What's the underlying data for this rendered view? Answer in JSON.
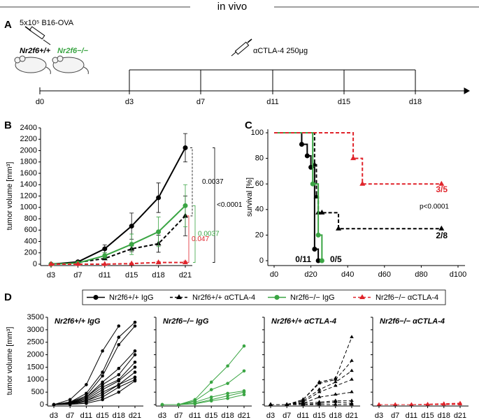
{
  "header": {
    "title": "in vivo"
  },
  "panel_labels": [
    "A",
    "B",
    "C",
    "D"
  ],
  "panel_a": {
    "cell_text": "5x10⁵ B16-OVA",
    "wt": "Nr2f6+/+",
    "ko": "Nr2f6−/−",
    "treatment": "αCTLA-4 250μg",
    "timeline": [
      "d0",
      "d3",
      "d7",
      "d11",
      "d15",
      "d18"
    ]
  },
  "chart_data": [
    {
      "type": "line",
      "y_label": "tumor volume [mm³]",
      "categories": [
        "d3",
        "d7",
        "d11",
        "d15",
        "d18",
        "d21"
      ],
      "ylim": [
        0,
        2400
      ],
      "yticks": [
        0,
        200,
        400,
        600,
        800,
        1000,
        1200,
        1400,
        1600,
        1800,
        2000,
        2200,
        2400
      ],
      "series": [
        {
          "name": "Nr2f6+/+ IgG",
          "color": "#000000",
          "dash": false,
          "marker": "circle",
          "values": [
            0,
            40,
            270,
            670,
            1170,
            2050
          ],
          "errors": [
            0,
            15,
            70,
            230,
            260,
            250
          ]
        },
        {
          "name": "Nr2f6+/+ αCTLA-4",
          "color": "#000000",
          "dash": true,
          "marker": "triangle",
          "values": [
            0,
            30,
            100,
            270,
            360,
            850
          ],
          "errors": [
            0,
            10,
            20,
            50,
            150,
            350
          ]
        },
        {
          "name": "Nr2f6−/− IgG",
          "color": "#3aa543",
          "dash": false,
          "marker": "circle",
          "values": [
            0,
            20,
            150,
            350,
            570,
            1030
          ],
          "errors": [
            0,
            10,
            50,
            180,
            260,
            370
          ]
        },
        {
          "name": "Nr2f6−/− αCTLA-4",
          "color": "#e0242b",
          "dash": true,
          "marker": "triangle",
          "values": [
            0,
            0,
            0,
            10,
            30,
            30
          ],
          "errors": [
            0,
            0,
            5,
            10,
            15,
            20
          ]
        }
      ],
      "annotations": [
        {
          "text": "0.0037",
          "color": "#000000"
        },
        {
          "text": "<0.0001",
          "color": "#000000"
        },
        {
          "text": "0.0037",
          "color": "#3aa543"
        },
        {
          "text": "0.047",
          "color": "#e0242b"
        }
      ]
    },
    {
      "type": "step",
      "y_label": "survival [%]",
      "xlim": [
        0,
        100
      ],
      "xticks": [
        {
          "value": 0,
          "label": "d0"
        },
        {
          "value": 20,
          "label": "d20"
        },
        {
          "value": 40,
          "label": "d40"
        },
        {
          "value": 60,
          "label": "d60"
        },
        {
          "value": 80,
          "label": "d80"
        },
        {
          "value": 100,
          "label": "d100"
        }
      ],
      "ylim": [
        0,
        100
      ],
      "yticks": [
        0,
        20,
        40,
        60,
        80,
        100
      ],
      "series": [
        {
          "color": "#000000",
          "dash": false,
          "marker": "circle",
          "x": [
            0,
            15,
            18,
            20,
            22,
            24
          ],
          "y": [
            100,
            91,
            82,
            73,
            9,
            0
          ]
        },
        {
          "color": "#000000",
          "dash": true,
          "marker": "triangle",
          "x": [
            0,
            22,
            23,
            24,
            26,
            35,
            91
          ],
          "y": [
            100,
            75,
            50,
            37.5,
            37.5,
            25,
            25
          ]
        },
        {
          "color": "#3aa543",
          "dash": false,
          "marker": "circle",
          "x": [
            0,
            21,
            24,
            26
          ],
          "y": [
            100,
            60,
            20,
            0
          ]
        },
        {
          "color": "#e0242b",
          "dash": true,
          "marker": "triangle",
          "x": [
            0,
            43,
            48,
            91
          ],
          "y": [
            100,
            80,
            60,
            60
          ]
        }
      ],
      "annotations": [
        {
          "text": "p<0.0001",
          "color": "#000000"
        },
        {
          "text": "3/5",
          "color": "#e0242b"
        },
        {
          "text": "2/8",
          "color": "#000000"
        },
        {
          "text": "0/11",
          "color": "#000000"
        },
        {
          "text": "0/5",
          "color": "#000000"
        }
      ]
    },
    {
      "type": "spaghetti",
      "title": "Nr2f6+/+ IgG",
      "y_label": "tumor volume [mm³]",
      "color": "#000000",
      "dash": false,
      "marker": "circle",
      "categories": [
        "d3",
        "d7",
        "d11",
        "d15",
        "d18",
        "d21"
      ],
      "ylim": [
        0,
        3500
      ],
      "yticks": [
        0,
        500,
        1000,
        1500,
        2000,
        2500,
        3000,
        3500
      ],
      "series": [
        {
          "values": [
            0,
            200,
            800,
            2150,
            3150,
            null
          ]
        },
        {
          "values": [
            0,
            100,
            450,
            1300,
            2700,
            3300
          ]
        },
        {
          "values": [
            0,
            100,
            350,
            1150,
            2400,
            3150
          ]
        },
        {
          "values": [
            0,
            80,
            300,
            900,
            1450,
            2150
          ]
        },
        {
          "values": [
            0,
            60,
            300,
            800,
            1200,
            2000
          ]
        },
        {
          "values": [
            0,
            50,
            250,
            700,
            1000,
            1700
          ]
        },
        {
          "values": [
            0,
            50,
            200,
            600,
            950,
            1500
          ]
        },
        {
          "values": [
            0,
            40,
            150,
            500,
            800,
            1300
          ]
        },
        {
          "values": [
            0,
            30,
            150,
            400,
            800,
            1100
          ]
        },
        {
          "values": [
            0,
            20,
            100,
            300,
            700,
            1000
          ]
        },
        {
          "values": [
            0,
            10,
            50,
            200,
            500,
            950
          ]
        }
      ]
    },
    {
      "type": "spaghetti",
      "title": "Nr2f6−/− IgG",
      "color": "#3aa543",
      "dash": false,
      "marker": "circle",
      "categories": [
        "d3",
        "d7",
        "d11",
        "d15",
        "d18",
        "d21"
      ],
      "ylim": [
        0,
        3500
      ],
      "yticks": [
        0,
        500,
        1000,
        1500,
        2000,
        2500,
        3000,
        3500
      ],
      "series": [
        {
          "values": [
            0,
            0,
            200,
            900,
            1550,
            2350
          ]
        },
        {
          "values": [
            0,
            0,
            150,
            600,
            850,
            1350
          ]
        },
        {
          "values": [
            0,
            0,
            100,
            300,
            450,
            550
          ]
        },
        {
          "values": [
            0,
            0,
            50,
            200,
            350,
            500
          ]
        },
        {
          "values": [
            0,
            0,
            30,
            150,
            250,
            400
          ]
        }
      ]
    },
    {
      "type": "spaghetti",
      "title": "Nr2f6+/+ αCTLA-4",
      "color": "#000000",
      "dash": true,
      "marker": "triangle",
      "categories": [
        "d3",
        "d7",
        "d11",
        "d15",
        "d18",
        "d21"
      ],
      "ylim": [
        0,
        3500
      ],
      "yticks": [
        0,
        500,
        1000,
        1500,
        2000,
        2500,
        3000,
        3500
      ],
      "series": [
        {
          "values": [
            0,
            0,
            200,
            900,
            1050,
            2700
          ]
        },
        {
          "values": [
            0,
            0,
            200,
            850,
            1000,
            1750
          ]
        },
        {
          "values": [
            0,
            0,
            150,
            600,
            900,
            1350
          ]
        },
        {
          "values": [
            0,
            0,
            100,
            500,
            750,
            1000
          ]
        },
        {
          "values": [
            0,
            0,
            50,
            300,
            400,
            500
          ]
        },
        {
          "values": [
            0,
            0,
            50,
            100,
            150,
            150
          ]
        },
        {
          "values": [
            0,
            0,
            0,
            50,
            100,
            50
          ]
        },
        {
          "values": [
            0,
            0,
            0,
            0,
            0,
            0
          ]
        }
      ]
    },
    {
      "type": "spaghetti",
      "title": "Nr2f6−/− αCTLA-4",
      "color": "#e0242b",
      "dash": true,
      "marker": "triangle",
      "categories": [
        "d3",
        "d7",
        "d11",
        "d15",
        "d18",
        "d21"
      ],
      "ylim": [
        0,
        3500
      ],
      "yticks": [
        0,
        500,
        1000,
        1500,
        2000,
        2500,
        3000,
        3500
      ],
      "series": [
        {
          "values": [
            0,
            0,
            0,
            20,
            40,
            60
          ]
        },
        {
          "values": [
            0,
            0,
            0,
            10,
            30,
            40
          ]
        },
        {
          "values": [
            0,
            0,
            0,
            0,
            20,
            30
          ]
        },
        {
          "values": [
            0,
            0,
            0,
            0,
            10,
            20
          ]
        },
        {
          "values": [
            0,
            0,
            0,
            0,
            0,
            10
          ]
        }
      ]
    }
  ]
}
